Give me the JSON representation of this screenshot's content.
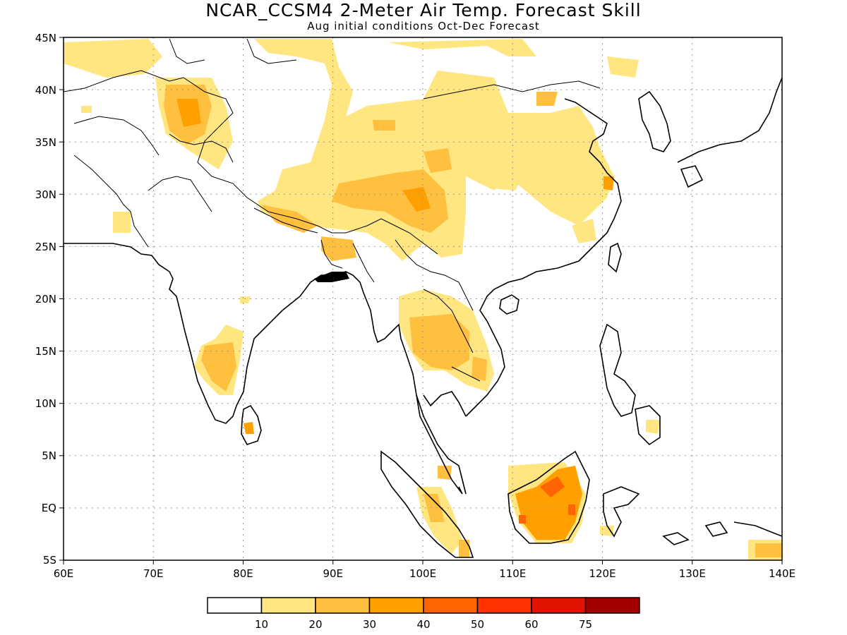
{
  "title": "NCAR_CCSM4 2-Meter Air Temp. Forecast Skill",
  "subtitle": "Aug initial conditions  Oct-Dec Forecast",
  "map": {
    "lon_range": [
      60,
      140
    ],
    "lat_range": [
      -5,
      45
    ],
    "lon_labels": [
      "60E",
      "70E",
      "80E",
      "90E",
      "100E",
      "110E",
      "120E",
      "130E",
      "140E"
    ],
    "lat_labels": [
      "5S",
      "EQ",
      "5N",
      "10N",
      "15N",
      "20N",
      "25N",
      "30N",
      "35N",
      "40N",
      "45N"
    ],
    "gridlines": "dotted"
  },
  "colorbar": {
    "labels": [
      "10",
      "20",
      "30",
      "40",
      "50",
      "60",
      "75"
    ],
    "colors": [
      "#ffffff",
      "#ffe680",
      "#ffc040",
      "#ffa000",
      "#ff6400",
      "#ff3200",
      "#e01400",
      "#a00000"
    ]
  }
}
